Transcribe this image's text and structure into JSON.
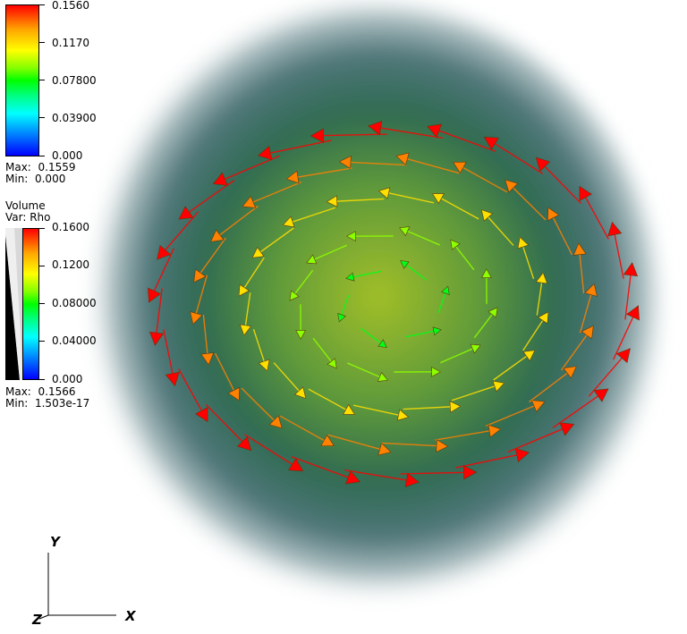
{
  "legend_pseudocolor": {
    "ticks": [
      "0.1560",
      "0.1170",
      "0.07800",
      "0.03900",
      "0.000"
    ],
    "max_label": "Max:",
    "max_value": "0.1559",
    "min_label": "Min:",
    "min_value": "0.000"
  },
  "legend_volume": {
    "title": "Volume",
    "var_label": "Var: Rho",
    "ticks": [
      "0.1600",
      "0.1200",
      "0.08000",
      "0.04000",
      "0.000"
    ],
    "max_label": "Max:",
    "max_value": "0.1566",
    "min_label": "Min:",
    "min_value": "1.503e-17"
  },
  "triad": {
    "x": "X",
    "y": "Y",
    "z": "Z"
  },
  "colors": {
    "high": "#ff0000",
    "mid": "#00ff00",
    "low": "#0000ff",
    "volume_core": "#9ab82a",
    "volume_edge": "#2d5a5c"
  }
}
